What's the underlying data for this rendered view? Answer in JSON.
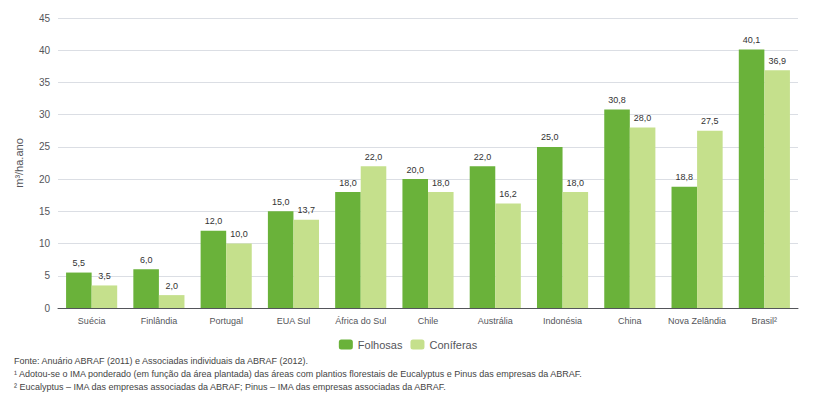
{
  "chart_data": {
    "type": "bar",
    "categories": [
      "Suécia",
      "Finlândia",
      "Portugal",
      "EUA Sul",
      "África do Sul",
      "Chile",
      "Austrália",
      "Indonésia",
      "China",
      "Nova Zelândia",
      "Brasil²"
    ],
    "series": [
      {
        "name": "Folhosas",
        "color": "#6ab23a",
        "values": [
          5.5,
          6.0,
          12.0,
          15.0,
          18.0,
          20.0,
          22.0,
          25.0,
          30.8,
          18.8,
          40.1
        ],
        "value_labels": [
          "5,5",
          "6,0",
          "12,0",
          "15,0",
          "18,0",
          "20,0",
          "22,0",
          "25,0",
          "30,8",
          "18,8",
          "40,1"
        ]
      },
      {
        "name": "Coníferas",
        "color": "#c5e08c",
        "values": [
          3.5,
          2.0,
          10.0,
          13.7,
          22.0,
          18.0,
          16.2,
          18.0,
          28.0,
          27.5,
          36.9
        ],
        "value_labels": [
          "3,5",
          "2,0",
          "10,0",
          "13,7",
          "22,0",
          "18,0",
          "16,2",
          "18,0",
          "28,0",
          "27,5",
          "36,9"
        ]
      }
    ],
    "ylabel": "m³/ha.ano",
    "ylim": [
      0,
      45
    ],
    "yticks": [
      0,
      5,
      10,
      15,
      20,
      25,
      30,
      35,
      40,
      45
    ],
    "grid": true,
    "legend": "bottom",
    "data_labels": true,
    "annotations": [
      "Fonte: Anuário ABRAF (2011) e Associadas individuais da ABRAF (2012).",
      "¹ Adotou-se o IMA ponderado (em função da área plantada) das áreas com plantios florestais de Eucalyptus e Pinus das empresas da ABRAF.",
      "² Eucalyptus – IMA das empresas associadas da ABRAF; Pinus – IMA das empresas associadas da ABRAF."
    ]
  }
}
